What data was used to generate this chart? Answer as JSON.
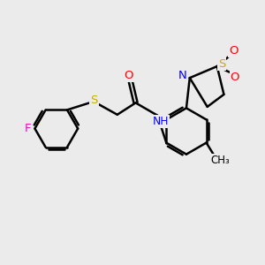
{
  "bg_color": "#ebebeb",
  "bond_color": "#000000",
  "colors": {
    "O": "#ff0000",
    "N": "#0000ff",
    "S": "#ccaa00",
    "F": "#ff00cc",
    "C": "#000000",
    "NH": "#0000ff"
  },
  "figsize": [
    3.0,
    3.0
  ],
  "dpi": 100
}
